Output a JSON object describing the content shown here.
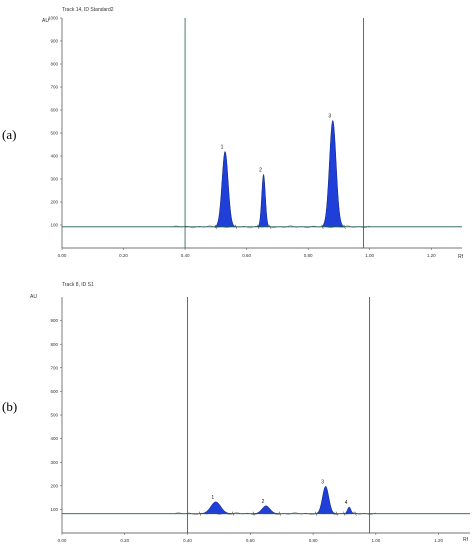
{
  "chart_data": [
    {
      "type": "area",
      "panel_label": "(a)",
      "title": "Track 14, ID Standard2",
      "ylabel": "AU",
      "xlabel": "Rf",
      "xlim": [
        0.0,
        1.3
      ],
      "ylim": [
        0,
        1000
      ],
      "x_ticks": [
        "0.00",
        "0.20",
        "0.40",
        "0.60",
        "0.80",
        "1.00",
        "1.20"
      ],
      "y_ticks": [
        "100",
        "200",
        "300",
        "400",
        "500",
        "600",
        "700",
        "800",
        "900",
        "1000"
      ],
      "baseline": 92,
      "front_lines": [
        0.4,
        0.98
      ],
      "peaks": [
        {
          "label": "1",
          "rf": 0.53,
          "height": 420,
          "width": 0.022
        },
        {
          "label": "2",
          "rf": 0.655,
          "height": 320,
          "width": 0.013
        },
        {
          "label": "3",
          "rf": 0.88,
          "height": 555,
          "width": 0.024
        }
      ],
      "peak_color": "#1f3fd8"
    },
    {
      "type": "area",
      "panel_label": "(b)",
      "title": "Track 8, ID S1",
      "ylabel": "AU",
      "xlabel": "Rf",
      "xlim": [
        0.0,
        1.3
      ],
      "ylim": [
        0,
        1000
      ],
      "x_ticks": [
        "0.00",
        "0.20",
        "0.40",
        "0.60",
        "0.80",
        "1.00",
        "1.20"
      ],
      "y_ticks": [
        "100",
        "200",
        "300",
        "400",
        "500",
        "600",
        "700",
        "800",
        "900"
      ],
      "baseline": 82,
      "front_lines": [
        0.4,
        0.98
      ],
      "peaks": [
        {
          "label": "1",
          "rf": 0.49,
          "height": 132,
          "width": 0.035
        },
        {
          "label": "2",
          "rf": 0.65,
          "height": 115,
          "width": 0.028
        },
        {
          "label": "3",
          "rf": 0.84,
          "height": 198,
          "width": 0.022
        },
        {
          "label": "4",
          "rf": 0.915,
          "height": 110,
          "width": 0.012
        }
      ],
      "peak_color": "#1f3fd8"
    }
  ]
}
